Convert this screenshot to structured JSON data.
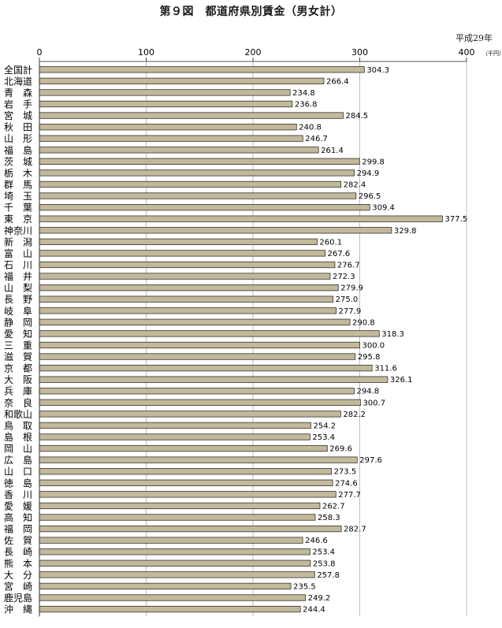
{
  "chart_data": {
    "type": "bar",
    "orientation": "horizontal",
    "title": "第９図　都道府県別賃金（男女計）",
    "note": "平成29年",
    "unit": "（千円）",
    "xlim": [
      0,
      400
    ],
    "ticks": [
      0,
      100,
      200,
      300,
      400
    ],
    "grid": true,
    "bar_color": "#c2b89a",
    "categories": [
      "全国計",
      "北海道",
      "青　森",
      "岩　手",
      "宮　城",
      "秋　田",
      "山　形",
      "福　島",
      "茨　城",
      "栃　木",
      "群　馬",
      "埼　玉",
      "千　葉",
      "東　京",
      "神奈川",
      "新　潟",
      "富　山",
      "石　川",
      "福　井",
      "山　梨",
      "長　野",
      "岐　阜",
      "静　岡",
      "愛　知",
      "三　重",
      "滋　賀",
      "京　都",
      "大　阪",
      "兵　庫",
      "奈　良",
      "和歌山",
      "鳥　取",
      "島　根",
      "岡　山",
      "広　島",
      "山　口",
      "徳　島",
      "香　川",
      "愛　媛",
      "高　知",
      "福　岡",
      "佐　賀",
      "長　崎",
      "熊　本",
      "大　分",
      "宮　崎",
      "鹿児島",
      "沖　縄"
    ],
    "values": [
      304.3,
      266.4,
      234.8,
      236.8,
      284.5,
      240.8,
      246.7,
      261.4,
      299.8,
      294.9,
      282.4,
      296.5,
      309.4,
      377.5,
      329.8,
      260.1,
      267.6,
      276.7,
      272.3,
      279.9,
      275.0,
      277.9,
      290.8,
      318.3,
      300.0,
      295.8,
      311.6,
      326.1,
      294.8,
      300.7,
      282.2,
      254.2,
      253.4,
      269.6,
      297.6,
      273.5,
      274.6,
      277.7,
      262.7,
      258.3,
      282.7,
      246.6,
      253.4,
      253.8,
      257.8,
      235.5,
      249.2,
      244.4
    ],
    "value_labels": [
      "304.3",
      "266.4",
      "234.8",
      "236.8",
      "284.5",
      "240.8",
      "246.7",
      "261.4",
      "299.8",
      "294.9",
      "282.4",
      "296.5",
      "309.4",
      "377.5",
      "329.8",
      "260.1",
      "267.6",
      "276.7",
      "272.3",
      "279.9",
      "275.0",
      "277.9",
      "290.8",
      "318.3",
      "300.0",
      "295.8",
      "311.6",
      "326.1",
      "294.8",
      "300.7",
      "282.2",
      "254.2",
      "253.4",
      "269.6",
      "297.6",
      "273.5",
      "274.6",
      "277.7",
      "262.7",
      "258.3",
      "282.7",
      "246.6",
      "253.4",
      "253.8",
      "257.8",
      "235.5",
      "249.2",
      "244.4"
    ]
  }
}
